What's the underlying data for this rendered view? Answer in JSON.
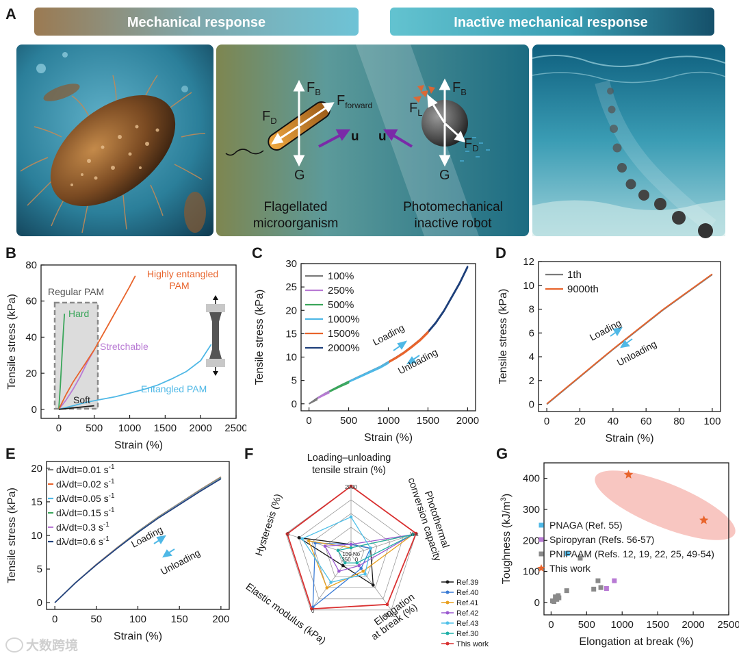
{
  "panel_A": {
    "letter": "A",
    "banner_left": "Mechanical response",
    "banner_right": "Inactive mechanical response",
    "diagram": {
      "force_B": "F",
      "force_B_sub": "B",
      "force_D": "F",
      "force_D_sub": "D",
      "force_forward": "F",
      "force_forward_sub": "forward",
      "force_L": "F",
      "force_L_sub": "L",
      "gravity": "G",
      "velocity": "u",
      "caption_left_1": "Flagellated",
      "caption_left_2": "microorganism",
      "caption_right_1": "Photomechanical",
      "caption_right_2": "inactive robot"
    }
  },
  "colors": {
    "orange": "#e8642c",
    "green": "#3aa65a",
    "purple": "#b87ad4",
    "blue_light": "#4fb8e6",
    "navy": "#1d3f7a",
    "gray": "#7a7a7a",
    "black": "#1a1a1a",
    "red": "#d93030"
  },
  "watermark": "大数跨境",
  "chart_data": [
    {
      "id": "B",
      "letter": "B",
      "type": "line",
      "xlabel": "Strain (%)",
      "ylabel": "Tensile stress (kPa)",
      "xlim": [
        -250,
        2500
      ],
      "ylim": [
        -5,
        80
      ],
      "xticks": [
        0,
        500,
        1000,
        1500,
        2000,
        2500
      ],
      "yticks": [
        0,
        20,
        40,
        60,
        80
      ],
      "region_label": "Regular PAM",
      "series": [
        {
          "name": "Hard",
          "color": "#3aa65a",
          "x": [
            0,
            20,
            40,
            60,
            80
          ],
          "y": [
            0,
            12,
            26,
            40,
            53
          ]
        },
        {
          "name": "Stretchable",
          "color": "#b87ad4",
          "x": [
            0,
            100,
            200,
            300,
            400,
            500
          ],
          "y": [
            0,
            5,
            11,
            18,
            26,
            33
          ]
        },
        {
          "name": "Highly entangled PAM",
          "color": "#e8642c",
          "x": [
            0,
            100,
            200,
            300,
            400,
            500,
            600,
            700,
            800,
            900,
            1000,
            1080
          ],
          "y": [
            0,
            8,
            15,
            21,
            27,
            33,
            40,
            47,
            54,
            61,
            68,
            74
          ]
        },
        {
          "name": "Entangled PAM",
          "color": "#4fb8e6",
          "x": [
            0,
            200,
            400,
            600,
            800,
            1000,
            1200,
            1400,
            1600,
            1800,
            2000,
            2150
          ],
          "y": [
            0,
            2,
            4,
            5.5,
            7,
            9,
            11,
            13.5,
            17,
            21,
            27,
            36
          ]
        },
        {
          "name": "Soft",
          "color": "#1a1a1a",
          "x": [
            0,
            100,
            200,
            300,
            400,
            500
          ],
          "y": [
            0,
            0.4,
            0.8,
            1.2,
            1.6,
            2
          ]
        }
      ],
      "annotations": [
        "Highly entangled",
        "PAM",
        "Regular PAM",
        "Hard",
        "Stretchable",
        "Soft",
        "Entangled PAM"
      ]
    },
    {
      "id": "C",
      "letter": "C",
      "type": "line",
      "xlabel": "Strain (%)",
      "ylabel": "Tensile stress (kPa)",
      "xlim": [
        -100,
        2100
      ],
      "ylim": [
        -1.5,
        30
      ],
      "xticks": [
        0,
        500,
        1000,
        1500,
        2000
      ],
      "yticks": [
        0,
        5,
        10,
        15,
        20,
        25,
        30
      ],
      "annotations": [
        "Loading",
        "Unloading"
      ],
      "series": [
        {
          "name": "100%",
          "color": "#7a7a7a",
          "max_strain": 100
        },
        {
          "name": "250%",
          "color": "#b87ad4",
          "max_strain": 250
        },
        {
          "name": "500%",
          "color": "#3aa65a",
          "max_strain": 500
        },
        {
          "name": "1000%",
          "color": "#4fb8e6",
          "max_strain": 1000
        },
        {
          "name": "1500%",
          "color": "#e8642c",
          "max_strain": 1500
        },
        {
          "name": "2000%",
          "color": "#1d3f7a",
          "max_strain": 2000
        }
      ],
      "curve": {
        "x": [
          0,
          100,
          200,
          300,
          400,
          500,
          600,
          700,
          800,
          900,
          1000,
          1100,
          1200,
          1300,
          1400,
          1500,
          1600,
          1700,
          1800,
          1900,
          2000
        ],
        "y": [
          0,
          1.2,
          2.2,
          3.1,
          4,
          4.8,
          5.6,
          6.4,
          7.2,
          8,
          9,
          10,
          11.1,
          12.4,
          13.8,
          15.5,
          17.5,
          20,
          23,
          26,
          29.5
        ]
      }
    },
    {
      "id": "D",
      "letter": "D",
      "type": "line",
      "xlabel": "Strain (%)",
      "ylabel": "Tensile stress (kPa)",
      "xlim": [
        -5,
        105
      ],
      "ylim": [
        -0.6,
        12
      ],
      "xticks": [
        0,
        20,
        40,
        60,
        80,
        100
      ],
      "yticks": [
        0,
        2,
        4,
        6,
        8,
        10,
        12
      ],
      "annotations": [
        "Loading",
        "Unloading"
      ],
      "series": [
        {
          "name": "1th",
          "color": "#7a7a7a"
        },
        {
          "name": "9000th",
          "color": "#e8642c"
        }
      ],
      "curve": {
        "x": [
          0,
          10,
          20,
          30,
          40,
          50,
          60,
          70,
          80,
          90,
          100
        ],
        "y": [
          0,
          1.15,
          2.3,
          3.45,
          4.6,
          5.7,
          6.8,
          7.9,
          8.9,
          9.9,
          10.9
        ]
      }
    },
    {
      "id": "E",
      "letter": "E",
      "type": "line",
      "xlabel": "Strain (%)",
      "ylabel": "Tensile stress (kPa)",
      "xlim": [
        -10,
        210
      ],
      "ylim": [
        -1,
        21
      ],
      "xticks": [
        0,
        50,
        100,
        150,
        200
      ],
      "yticks": [
        0,
        5,
        10,
        15,
        20
      ],
      "annotations": [
        "Loading",
        "Unloading"
      ],
      "series": [
        {
          "name": "dλ/dt=0.01 s",
          "color": "#7a7a7a"
        },
        {
          "name": "dλ/dt=0.02 s",
          "color": "#e8642c"
        },
        {
          "name": "dλ/dt=0.05 s",
          "color": "#4fb8e6"
        },
        {
          "name": "dλ/dt=0.15 s",
          "color": "#3aa65a"
        },
        {
          "name": "dλ/dt=0.3 s",
          "color": "#b87ad4"
        },
        {
          "name": "dλ/dt=0.6 s",
          "color": "#1d3f7a"
        }
      ],
      "unit_superscript": "-1",
      "curve": {
        "x": [
          0,
          25,
          50,
          75,
          100,
          125,
          150,
          175,
          200
        ],
        "y": [
          0,
          3,
          5.7,
          8.2,
          10.6,
          12.8,
          14.8,
          16.8,
          18.7
        ]
      }
    },
    {
      "id": "F",
      "letter": "F",
      "type": "radar",
      "axes": [
        {
          "label_lines": [
            "Loading–unloading",
            "tensile strain (%)"
          ],
          "min": 0,
          "max": 2000
        },
        {
          "label_lines": [
            "Photothermal",
            "conversion capacity"
          ],
          "min": "No",
          "max": "Yes"
        },
        {
          "label_lines": [
            "Elongation",
            "at break (%)"
          ],
          "min": 0,
          "max": 2500
        },
        {
          "label_lines": [
            "Elastic modulus (kPa)"
          ],
          "min": 0,
          "max": 350
        },
        {
          "label_lines": [
            "Hysteresis (%)"
          ],
          "min": 0,
          "max": 100
        }
      ],
      "tick_labels": [
        "2000",
        "Yes",
        "2500",
        "0",
        "0",
        "100",
        "No",
        "350",
        "0"
      ],
      "series": [
        {
          "name": "Ref.39",
          "color": "#1a1a1a",
          "marker": "square",
          "values": [
            0.15,
            0.3,
            0.55,
            0.2,
            0.8
          ]
        },
        {
          "name": "Ref.40",
          "color": "#3a7bd5",
          "marker": "circle",
          "values": [
            0.15,
            0.3,
            0.25,
            0.95,
            0.55
          ]
        },
        {
          "name": "Ref.41",
          "color": "#e8a020",
          "marker": "triangle",
          "values": [
            0.1,
            0.95,
            0.3,
            0.6,
            0.65
          ]
        },
        {
          "name": "Ref.42",
          "color": "#9b59d0",
          "marker": "triangle-down",
          "values": [
            0.15,
            0.95,
            0.2,
            0.3,
            0.4
          ]
        },
        {
          "name": "Ref.43",
          "color": "#4fc0e8",
          "marker": "diamond",
          "values": [
            0.55,
            0.3,
            0.35,
            0.5,
            0.75
          ]
        },
        {
          "name": "Ref.30",
          "color": "#1fb0a8",
          "marker": "triangle-left",
          "values": [
            0.1,
            0.95,
            0.15,
            0.15,
            0.2
          ]
        },
        {
          "name": "This work",
          "color": "#d93030",
          "marker": "triangle-right",
          "values": [
            1.0,
            1.0,
            0.9,
            0.98,
            0.98
          ]
        }
      ]
    },
    {
      "id": "G",
      "letter": "G",
      "type": "scatter",
      "xlabel": "Elongation at break (%)",
      "ylabel": "Toughness (kJ/m",
      "ylabel_sup": "3",
      "ylabel_end": ")",
      "xlim": [
        -100,
        2500
      ],
      "ylim": [
        -40,
        450
      ],
      "xticks": [
        0,
        500,
        1000,
        1500,
        2000,
        2500
      ],
      "yticks": [
        0,
        100,
        200,
        300,
        400
      ],
      "series": [
        {
          "name": "PNAGA (Ref. 55)",
          "color": "#4fb8e6",
          "marker": "square",
          "x": [
            230
          ],
          "y": [
            158
          ]
        },
        {
          "name": "Spiropyran (Refs. 56-57)",
          "color": "#b87ad4",
          "marker": "square",
          "x": [
            780,
            890
          ],
          "y": [
            45,
            70
          ]
        },
        {
          "name": "PNIPAAM (Refs. 12, 19, 22, 25, 49-54)",
          "color": "#8a8a8a",
          "marker": "square",
          "x": [
            20,
            40,
            60,
            80,
            100,
            110,
            220,
            410,
            600,
            660,
            700
          ],
          "y": [
            5,
            3,
            18,
            10,
            22,
            15,
            38,
            143,
            43,
            70,
            48
          ]
        },
        {
          "name": "This work",
          "color": "#e8642c",
          "marker": "star",
          "x": [
            1090,
            2150
          ],
          "y": [
            412,
            265
          ]
        }
      ]
    }
  ]
}
